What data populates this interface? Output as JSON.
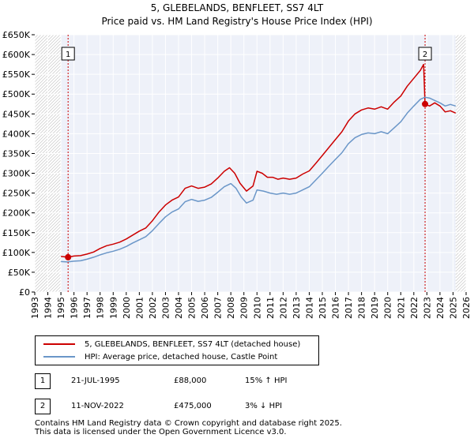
{
  "chart_data": {
    "type": "line",
    "title_line1": "5, GLEBELANDS, BENFLEET, SS7 4LT",
    "title_line2": "Price paid vs. HM Land Registry's House Price Index (HPI)",
    "ylim": [
      0,
      650000
    ],
    "xlim": [
      1993,
      2026
    ],
    "y_ticks": [
      {
        "value": 0,
        "label": "£0"
      },
      {
        "value": 50000,
        "label": "£50K"
      },
      {
        "value": 100000,
        "label": "£100K"
      },
      {
        "value": 150000,
        "label": "£150K"
      },
      {
        "value": 200000,
        "label": "£200K"
      },
      {
        "value": 250000,
        "label": "£250K"
      },
      {
        "value": 300000,
        "label": "£300K"
      },
      {
        "value": 350000,
        "label": "£350K"
      },
      {
        "value": 400000,
        "label": "£400K"
      },
      {
        "value": 450000,
        "label": "£450K"
      },
      {
        "value": 500000,
        "label": "£500K"
      },
      {
        "value": 550000,
        "label": "£550K"
      },
      {
        "value": 600000,
        "label": "£600K"
      },
      {
        "value": 650000,
        "label": "£650K"
      }
    ],
    "x_ticks": [
      "1993",
      "1994",
      "1995",
      "1996",
      "1997",
      "1998",
      "1999",
      "2000",
      "2001",
      "2002",
      "2003",
      "2004",
      "2005",
      "2006",
      "2007",
      "2008",
      "2009",
      "2010",
      "2011",
      "2012",
      "2013",
      "2014",
      "2015",
      "2016",
      "2017",
      "2018",
      "2019",
      "2020",
      "2021",
      "2022",
      "2023",
      "2024",
      "2025",
      "2026"
    ],
    "data_start_year": 1995.0,
    "data_end_year": 2025.2,
    "series": [
      {
        "name": "5, GLEBELANDS, BENFLEET, SS7 4LT (detached house)",
        "color": "#cc0000",
        "points": [
          [
            1995.0,
            90000
          ],
          [
            1995.55,
            88000
          ],
          [
            1996.0,
            91000
          ],
          [
            1996.5,
            92000
          ],
          [
            1997.0,
            96000
          ],
          [
            1997.5,
            101000
          ],
          [
            1998.0,
            110000
          ],
          [
            1998.5,
            117000
          ],
          [
            1999.0,
            121000
          ],
          [
            1999.5,
            126000
          ],
          [
            2000.0,
            134000
          ],
          [
            2000.5,
            144000
          ],
          [
            2001.0,
            154000
          ],
          [
            2001.5,
            162000
          ],
          [
            2002.0,
            180000
          ],
          [
            2002.5,
            202000
          ],
          [
            2003.0,
            220000
          ],
          [
            2003.5,
            232000
          ],
          [
            2004.0,
            240000
          ],
          [
            2004.5,
            262000
          ],
          [
            2005.0,
            268000
          ],
          [
            2005.5,
            262000
          ],
          [
            2006.0,
            265000
          ],
          [
            2006.5,
            273000
          ],
          [
            2007.0,
            288000
          ],
          [
            2007.5,
            305000
          ],
          [
            2007.9,
            314000
          ],
          [
            2008.3,
            300000
          ],
          [
            2008.7,
            275000
          ],
          [
            2009.2,
            255000
          ],
          [
            2009.7,
            268000
          ],
          [
            2010.0,
            305000
          ],
          [
            2010.4,
            300000
          ],
          [
            2010.8,
            290000
          ],
          [
            2011.2,
            290000
          ],
          [
            2011.6,
            285000
          ],
          [
            2012.0,
            288000
          ],
          [
            2012.5,
            285000
          ],
          [
            2013.0,
            288000
          ],
          [
            2013.5,
            298000
          ],
          [
            2014.0,
            306000
          ],
          [
            2014.5,
            325000
          ],
          [
            2015.0,
            345000
          ],
          [
            2015.5,
            365000
          ],
          [
            2016.0,
            385000
          ],
          [
            2016.5,
            405000
          ],
          [
            2017.0,
            432000
          ],
          [
            2017.5,
            450000
          ],
          [
            2018.0,
            460000
          ],
          [
            2018.5,
            465000
          ],
          [
            2019.0,
            462000
          ],
          [
            2019.5,
            468000
          ],
          [
            2020.0,
            462000
          ],
          [
            2020.5,
            480000
          ],
          [
            2021.0,
            495000
          ],
          [
            2021.5,
            520000
          ],
          [
            2022.0,
            540000
          ],
          [
            2022.5,
            560000
          ],
          [
            2022.75,
            575000
          ],
          [
            2022.86,
            475000
          ],
          [
            2023.2,
            470000
          ],
          [
            2023.6,
            478000
          ],
          [
            2024.0,
            470000
          ],
          [
            2024.4,
            455000
          ],
          [
            2024.8,
            458000
          ],
          [
            2025.2,
            452000
          ]
        ]
      },
      {
        "name": "HPI: Average price, detached house, Castle Point",
        "color": "#6a96c8",
        "points": [
          [
            1995.0,
            77000
          ],
          [
            1995.5,
            76000
          ],
          [
            1996.0,
            78000
          ],
          [
            1996.5,
            79000
          ],
          [
            1997.0,
            83000
          ],
          [
            1997.5,
            88000
          ],
          [
            1998.0,
            94000
          ],
          [
            1998.5,
            99000
          ],
          [
            1999.0,
            103000
          ],
          [
            1999.5,
            108000
          ],
          [
            2000.0,
            115000
          ],
          [
            2000.5,
            124000
          ],
          [
            2001.0,
            132000
          ],
          [
            2001.5,
            140000
          ],
          [
            2002.0,
            155000
          ],
          [
            2002.5,
            173000
          ],
          [
            2003.0,
            190000
          ],
          [
            2003.5,
            202000
          ],
          [
            2004.0,
            210000
          ],
          [
            2004.5,
            228000
          ],
          [
            2005.0,
            234000
          ],
          [
            2005.5,
            229000
          ],
          [
            2006.0,
            232000
          ],
          [
            2006.5,
            239000
          ],
          [
            2007.0,
            252000
          ],
          [
            2007.5,
            266000
          ],
          [
            2008.0,
            274000
          ],
          [
            2008.4,
            262000
          ],
          [
            2008.8,
            240000
          ],
          [
            2009.2,
            225000
          ],
          [
            2009.7,
            232000
          ],
          [
            2010.0,
            258000
          ],
          [
            2010.5,
            255000
          ],
          [
            2011.0,
            250000
          ],
          [
            2011.5,
            247000
          ],
          [
            2012.0,
            250000
          ],
          [
            2012.5,
            247000
          ],
          [
            2013.0,
            250000
          ],
          [
            2013.5,
            258000
          ],
          [
            2014.0,
            266000
          ],
          [
            2014.5,
            283000
          ],
          [
            2015.0,
            300000
          ],
          [
            2015.5,
            318000
          ],
          [
            2016.0,
            335000
          ],
          [
            2016.5,
            352000
          ],
          [
            2017.0,
            375000
          ],
          [
            2017.5,
            390000
          ],
          [
            2018.0,
            398000
          ],
          [
            2018.5,
            402000
          ],
          [
            2019.0,
            400000
          ],
          [
            2019.5,
            405000
          ],
          [
            2020.0,
            400000
          ],
          [
            2020.5,
            415000
          ],
          [
            2021.0,
            430000
          ],
          [
            2021.5,
            452000
          ],
          [
            2022.0,
            470000
          ],
          [
            2022.5,
            487000
          ],
          [
            2022.86,
            492000
          ],
          [
            2023.2,
            490000
          ],
          [
            2023.6,
            484000
          ],
          [
            2024.0,
            478000
          ],
          [
            2024.4,
            470000
          ],
          [
            2024.8,
            474000
          ],
          [
            2025.2,
            470000
          ]
        ]
      }
    ],
    "markers": [
      {
        "label": "1",
        "year": 1995.55,
        "price": 88000
      },
      {
        "label": "2",
        "year": 2022.86,
        "price": 475000
      }
    ],
    "legend": [
      {
        "label": "5, GLEBELANDS, BENFLEET, SS7 4LT (detached house)",
        "color": "#cc0000"
      },
      {
        "label": "HPI: Average price, detached house, Castle Point",
        "color": "#6a96c8"
      }
    ]
  },
  "sales": [
    {
      "num": "1",
      "date": "21-JUL-1995",
      "price": "£88,000",
      "hpi": "15% ↑ HPI"
    },
    {
      "num": "2",
      "date": "11-NOV-2022",
      "price": "£475,000",
      "hpi": "3% ↓ HPI"
    }
  ],
  "footer": {
    "line1": "Contains HM Land Registry data © Crown copyright and database right 2025.",
    "line2": "This data is licensed under the Open Government Licence v3.0."
  }
}
